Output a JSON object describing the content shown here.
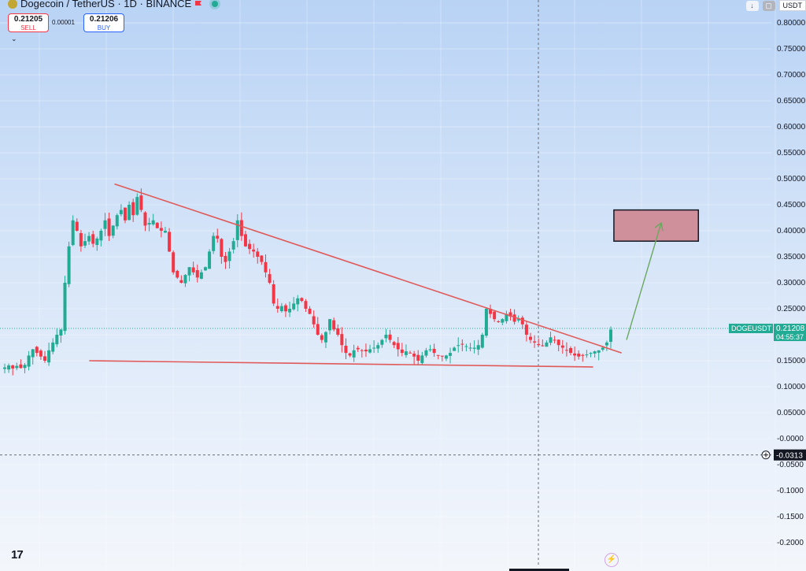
{
  "header": {
    "symbol": "Dogecoin / TetherUS · 1D · BINANCE",
    "sell_price": "0.21205",
    "sell_label": "SELL",
    "spread": "0.00001",
    "buy_price": "0.21206",
    "buy_label": "BUY",
    "currency": "USDT"
  },
  "icons": {
    "coin": "dogecoin-icon",
    "flag": "flag-icon",
    "status": "market-open-dot-icon",
    "collapse": "chevron-down-icon",
    "download": "arrow-down-icon",
    "lock": "lock-icon",
    "add": "plus-circle-icon",
    "bolt": "lightning-icon",
    "logo": "tradingview-logo"
  },
  "logo_text": "17",
  "bolt_glyph": "⚡",
  "price_scale": {
    "ticks": [
      "0.80000",
      "0.75000",
      "0.70000",
      "0.65000",
      "0.60000",
      "0.55000",
      "0.50000",
      "0.45000",
      "0.40000",
      "0.35000",
      "0.30000",
      "0.25000",
      "0.20000",
      "0.15000",
      "0.10000",
      "0.05000",
      "-0.0000",
      "-0.0500",
      "-0.1000",
      "-0.1500",
      "-0.2000"
    ],
    "symbol_tag": "DOGEUSDT",
    "last_price": "0.21208",
    "countdown": "04:55:37",
    "cursor_price": "-0.0313"
  },
  "colors": {
    "up": "#22ab94",
    "down": "#f23645",
    "trendline": "#e05a5a",
    "arrow": "#6aa860",
    "target_fill": "#cf8f9b",
    "target_border": "#131722"
  },
  "chart_data": {
    "type": "candlestick",
    "title": "",
    "xlabel": "",
    "ylabel": "",
    "ylim": [
      -0.21,
      0.81
    ],
    "ticks": [
      0.8,
      0.75,
      0.7,
      0.65,
      0.6,
      0.55,
      0.5,
      0.45,
      0.4,
      0.35,
      0.3,
      0.25,
      0.2,
      0.15,
      0.1,
      0.05,
      0.0,
      -0.05,
      -0.1,
      -0.15,
      -0.2
    ],
    "last_price": 0.21208,
    "cursor_price": -0.0313,
    "close_path": [
      0.137,
      0.141,
      0.135,
      0.14,
      0.136,
      0.142,
      0.16,
      0.172,
      0.165,
      0.158,
      0.15,
      0.17,
      0.185,
      0.2,
      0.21,
      0.3,
      0.37,
      0.42,
      0.4,
      0.37,
      0.38,
      0.39,
      0.375,
      0.385,
      0.4,
      0.42,
      0.39,
      0.41,
      0.43,
      0.44,
      0.42,
      0.45,
      0.43,
      0.465,
      0.44,
      0.41,
      0.415,
      0.42,
      0.405,
      0.4,
      0.4,
      0.36,
      0.32,
      0.31,
      0.3,
      0.315,
      0.33,
      0.32,
      0.31,
      0.32,
      0.33,
      0.36,
      0.39,
      0.385,
      0.35,
      0.34,
      0.36,
      0.38,
      0.42,
      0.39,
      0.37,
      0.365,
      0.36,
      0.35,
      0.34,
      0.32,
      0.3,
      0.26,
      0.25,
      0.255,
      0.245,
      0.25,
      0.26,
      0.27,
      0.265,
      0.25,
      0.24,
      0.22,
      0.2,
      0.19,
      0.205,
      0.23,
      0.21,
      0.2,
      0.18,
      0.165,
      0.16,
      0.17,
      0.172,
      0.17,
      0.168,
      0.172,
      0.175,
      0.18,
      0.19,
      0.2,
      0.19,
      0.18,
      0.172,
      0.165,
      0.168,
      0.165,
      0.158,
      0.15,
      0.16,
      0.17,
      0.172,
      0.165,
      0.16,
      0.158,
      0.16,
      0.165,
      0.175,
      0.18,
      0.182,
      0.178,
      0.175,
      0.175,
      0.18,
      0.2,
      0.25,
      0.24,
      0.23,
      0.225,
      0.23,
      0.24,
      0.235,
      0.225,
      0.23,
      0.22,
      0.2,
      0.19,
      0.185,
      0.18,
      0.178,
      0.185,
      0.195,
      0.19,
      0.18,
      0.175,
      0.17,
      0.165,
      0.16,
      0.158,
      0.16,
      0.162,
      0.165,
      0.168,
      0.17,
      0.175,
      0.185,
      0.21
    ],
    "annotations": {
      "descending_trendline": {
        "x_from_date": 0.145,
        "value_from": 0.49,
        "x_to_date": 0.805,
        "value_to": 0.165
      },
      "support_line": {
        "x_from_date": 0.112,
        "value_from": 0.15,
        "x_to_date": 0.768,
        "value_to": 0.138
      },
      "target_zone": {
        "x_from_date": 0.795,
        "x_to_date": 0.905,
        "value_low": 0.38,
        "value_high": 0.44
      },
      "projection_arrow": {
        "value_from": 0.19,
        "value_to": 0.415
      }
    }
  }
}
